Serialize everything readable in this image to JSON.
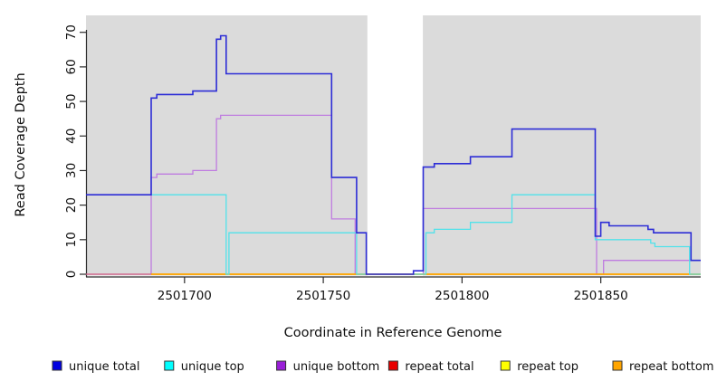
{
  "chart_data": {
    "type": "line",
    "subtype": "step-coverage-plot",
    "title": "",
    "xlabel": "Coordinate in Reference Genome",
    "ylabel": "Read Coverage Depth",
    "x_range": [
      2501664.5,
      2501886
    ],
    "y_range": [
      0,
      74.9
    ],
    "x_ticks": [
      "2501700",
      "2501750",
      "2501800",
      "2501850"
    ],
    "x_tick_values": [
      2501700,
      2501750,
      2501800,
      2501850
    ],
    "y_ticks": [
      "0",
      "10",
      "20",
      "30",
      "40",
      "50",
      "60",
      "70"
    ],
    "y_tick_values": [
      0,
      10,
      20,
      30,
      40,
      50,
      60,
      70
    ],
    "grid": false,
    "legend_position": "bottom",
    "plot_background": "#ffffff",
    "region_color": "#dbdbdb",
    "axis_color": "#2b2b2b",
    "background_regions": [
      {
        "name": "covered-region-1",
        "x_start": 2501664.5,
        "x_end": 2501765.9
      },
      {
        "name": "covered-region-2",
        "x_start": 2501785.9,
        "x_end": 2501886
      }
    ],
    "series": [
      {
        "name": "unique total",
        "key": "unique-total",
        "color": "#2d2dd6",
        "legend_color": "#0000e0",
        "width": 1.6,
        "z": 6,
        "points": [
          [
            2501664.5,
            23
          ],
          [
            2501688,
            23
          ],
          [
            2501688,
            51
          ],
          [
            2501690,
            51
          ],
          [
            2501690,
            52
          ],
          [
            2501703,
            52
          ],
          [
            2501703,
            53
          ],
          [
            2501711.5,
            53
          ],
          [
            2501711.5,
            68
          ],
          [
            2501713,
            68
          ],
          [
            2501713,
            69
          ],
          [
            2501715,
            69
          ],
          [
            2501715,
            58
          ],
          [
            2501753,
            58
          ],
          [
            2501753,
            28
          ],
          [
            2501762,
            28
          ],
          [
            2501762,
            12
          ],
          [
            2501765.5,
            12
          ],
          [
            2501765.5,
            0
          ],
          [
            2501782.5,
            0
          ],
          [
            2501782.5,
            1
          ],
          [
            2501786,
            1
          ],
          [
            2501786,
            31
          ],
          [
            2501790,
            31
          ],
          [
            2501790,
            32
          ],
          [
            2501803,
            32
          ],
          [
            2501803,
            34
          ],
          [
            2501818,
            34
          ],
          [
            2501818,
            42
          ],
          [
            2501848,
            42
          ],
          [
            2501848,
            11
          ],
          [
            2501850,
            11
          ],
          [
            2501850,
            15
          ],
          [
            2501853,
            15
          ],
          [
            2501853,
            14
          ],
          [
            2501867,
            14
          ],
          [
            2501867,
            13
          ],
          [
            2501869,
            13
          ],
          [
            2501869,
            12
          ],
          [
            2501882.5,
            12
          ],
          [
            2501882.5,
            4
          ],
          [
            2501886,
            4
          ]
        ]
      },
      {
        "name": "unique top",
        "key": "unique-top",
        "color": "#52e2ea",
        "legend_color": "#00ffff",
        "width": 1.3,
        "z": 5,
        "points": [
          [
            2501664.5,
            23
          ],
          [
            2501715,
            23
          ],
          [
            2501715,
            0
          ],
          [
            2501716,
            0
          ],
          [
            2501716,
            12
          ],
          [
            2501762,
            12
          ],
          [
            2501762,
            0
          ],
          [
            2501787,
            0
          ],
          [
            2501787,
            12
          ],
          [
            2501790,
            12
          ],
          [
            2501790,
            13
          ],
          [
            2501803,
            13
          ],
          [
            2501803,
            15
          ],
          [
            2501818,
            15
          ],
          [
            2501818,
            23
          ],
          [
            2501848,
            23
          ],
          [
            2501848,
            10
          ],
          [
            2501868,
            10
          ],
          [
            2501868,
            9
          ],
          [
            2501869.5,
            9
          ],
          [
            2501869.5,
            8
          ],
          [
            2501882,
            8
          ],
          [
            2501882,
            0
          ],
          [
            2501886,
            0
          ]
        ]
      },
      {
        "name": "unique bottom",
        "key": "unique-bottom",
        "color": "#bf7ce0",
        "legend_color": "#9a1fd8",
        "width": 1.3,
        "z": 1,
        "points": [
          [
            2501664.5,
            0
          ],
          [
            2501688,
            0
          ],
          [
            2501688,
            28
          ],
          [
            2501690,
            28
          ],
          [
            2501690,
            29
          ],
          [
            2501703,
            29
          ],
          [
            2501703,
            30
          ],
          [
            2501711.5,
            30
          ],
          [
            2501711.5,
            45
          ],
          [
            2501713,
            45
          ],
          [
            2501713,
            46
          ],
          [
            2501753,
            46
          ],
          [
            2501753,
            16
          ],
          [
            2501761.5,
            16
          ],
          [
            2501761.5,
            0
          ],
          [
            2501786,
            0
          ],
          [
            2501786,
            19
          ],
          [
            2501848.5,
            19
          ],
          [
            2501848.5,
            0
          ],
          [
            2501851,
            0
          ],
          [
            2501851,
            4
          ],
          [
            2501886,
            4
          ]
        ]
      },
      {
        "name": "repeat total",
        "key": "repeat-total",
        "color": "#d4627f",
        "legend_color": "#e80000",
        "width": 1.3,
        "z": 2,
        "points": [
          [
            2501664.5,
            0
          ],
          [
            2501886,
            0
          ]
        ]
      },
      {
        "name": "repeat top",
        "key": "repeat-top",
        "color": "#ffff00",
        "legend_color": "#ffff00",
        "width": 1.3,
        "z": 3,
        "points": [
          [
            2501688,
            0
          ],
          [
            2501886,
            0
          ]
        ]
      },
      {
        "name": "repeat bottom",
        "key": "repeat-bottom",
        "color": "#ffa500",
        "legend_color": "#ffa500",
        "width": 1.7,
        "z": 4,
        "points": [
          [
            2501688,
            0
          ],
          [
            2501886,
            0
          ]
        ]
      }
    ]
  }
}
